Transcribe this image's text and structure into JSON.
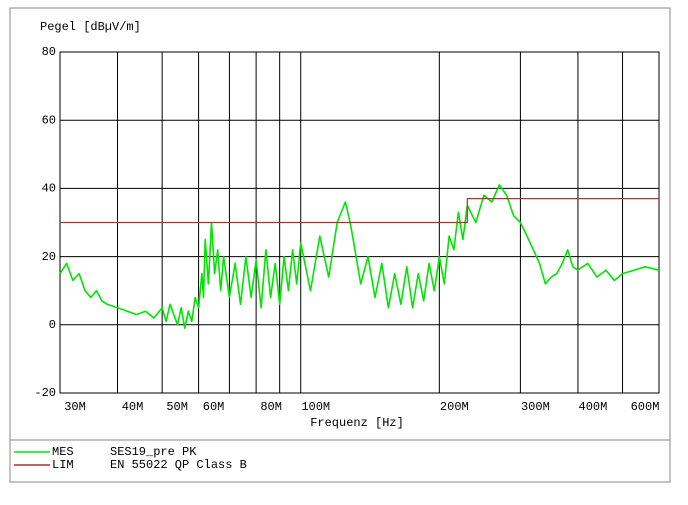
{
  "chart_data": {
    "type": "line",
    "ylabel": "Pegel [dBµV/m]",
    "xlabel": "Frequenz [Hz]",
    "xscale": "log",
    "grid": true,
    "xlim": [
      30000000.0,
      600000000.0
    ],
    "ylim": [
      -20,
      80
    ],
    "yticks": [
      -20,
      0,
      20,
      40,
      60,
      80
    ],
    "xticks": [
      {
        "value": 30000000.0,
        "label": "30M"
      },
      {
        "value": 40000000.0,
        "label": "40M"
      },
      {
        "value": 50000000.0,
        "label": "50M"
      },
      {
        "value": 60000000.0,
        "label": "60M"
      },
      {
        "value": 70000000.0,
        "label": null
      },
      {
        "value": 80000000.0,
        "label": "80M"
      },
      {
        "value": 90000000.0,
        "label": null
      },
      {
        "value": 100000000.0,
        "label": "100M"
      },
      {
        "value": 200000000.0,
        "label": "200M"
      },
      {
        "value": 300000000.0,
        "label": "300M"
      },
      {
        "value": 400000000.0,
        "label": "400M"
      },
      {
        "value": 500000000.0,
        "label": null
      },
      {
        "value": 600000000.0,
        "label": "600M"
      }
    ],
    "series": [
      {
        "name": "MES",
        "description": "SES19_pre PK",
        "color": "#00e600",
        "x": [
          30000000.0,
          31000000.0,
          32000000.0,
          33000000.0,
          34000000.0,
          35000000.0,
          36000000.0,
          37000000.0,
          38000000.0,
          40000000.0,
          42000000.0,
          44000000.0,
          46000000.0,
          48000000.0,
          50000000.0,
          51000000.0,
          52000000.0,
          54000000.0,
          55000000.0,
          56000000.0,
          57000000.0,
          58000000.0,
          59000000.0,
          60000000.0,
          61000000.0,
          61500000.0,
          62000000.0,
          63000000.0,
          64000000.0,
          65000000.0,
          66000000.0,
          67000000.0,
          68000000.0,
          70000000.0,
          72000000.0,
          74000000.0,
          76000000.0,
          78000000.0,
          80000000.0,
          82000000.0,
          84000000.0,
          86000000.0,
          88000000.0,
          90000000.0,
          92000000.0,
          94000000.0,
          96000000.0,
          98000000.0,
          100000000.0,
          105000000.0,
          110000000.0,
          115000000.0,
          120000000.0,
          125000000.0,
          128000000.0,
          130000000.0,
          135000000.0,
          140000000.0,
          145000000.0,
          150000000.0,
          155000000.0,
          160000000.0,
          165000000.0,
          170000000.0,
          175000000.0,
          180000000.0,
          185000000.0,
          190000000.0,
          195000000.0,
          200000000.0,
          205000000.0,
          210000000.0,
          215000000.0,
          220000000.0,
          225000000.0,
          230000000.0,
          240000000.0,
          250000000.0,
          260000000.0,
          270000000.0,
          280000000.0,
          290000000.0,
          300000000.0,
          310000000.0,
          320000000.0,
          330000000.0,
          340000000.0,
          350000000.0,
          360000000.0,
          370000000.0,
          380000000.0,
          390000000.0,
          400000000.0,
          420000000.0,
          440000000.0,
          460000000.0,
          480000000.0,
          500000000.0,
          530000000.0,
          560000000.0,
          600000000.0
        ],
        "values": [
          15,
          18,
          13,
          15,
          10,
          8,
          10,
          7,
          6,
          5,
          4,
          3,
          4,
          2,
          5,
          1,
          6,
          0,
          5,
          -1,
          4,
          1,
          8,
          5,
          15,
          8,
          25,
          12,
          30,
          15,
          22,
          10,
          20,
          8,
          18,
          6,
          20,
          8,
          19,
          5,
          22,
          8,
          18,
          6,
          20,
          10,
          22,
          12,
          24,
          10,
          26,
          14,
          30,
          36,
          30,
          25,
          12,
          20,
          8,
          18,
          5,
          15,
          6,
          17,
          5,
          15,
          7,
          18,
          10,
          20,
          12,
          26,
          22,
          33,
          25,
          35,
          30,
          38,
          36,
          41,
          38,
          32,
          30,
          26,
          22,
          18,
          12,
          14,
          15,
          18,
          22,
          17,
          16,
          18,
          14,
          16,
          13,
          15,
          16,
          17,
          16
        ]
      },
      {
        "name": "LIM",
        "description": "EN 55022 QP Class B",
        "color": "#b03030",
        "x": [
          30000000.0,
          230000000.0,
          230000000.0,
          600000000.0
        ],
        "values": [
          30,
          30,
          37,
          37
        ]
      }
    ]
  }
}
